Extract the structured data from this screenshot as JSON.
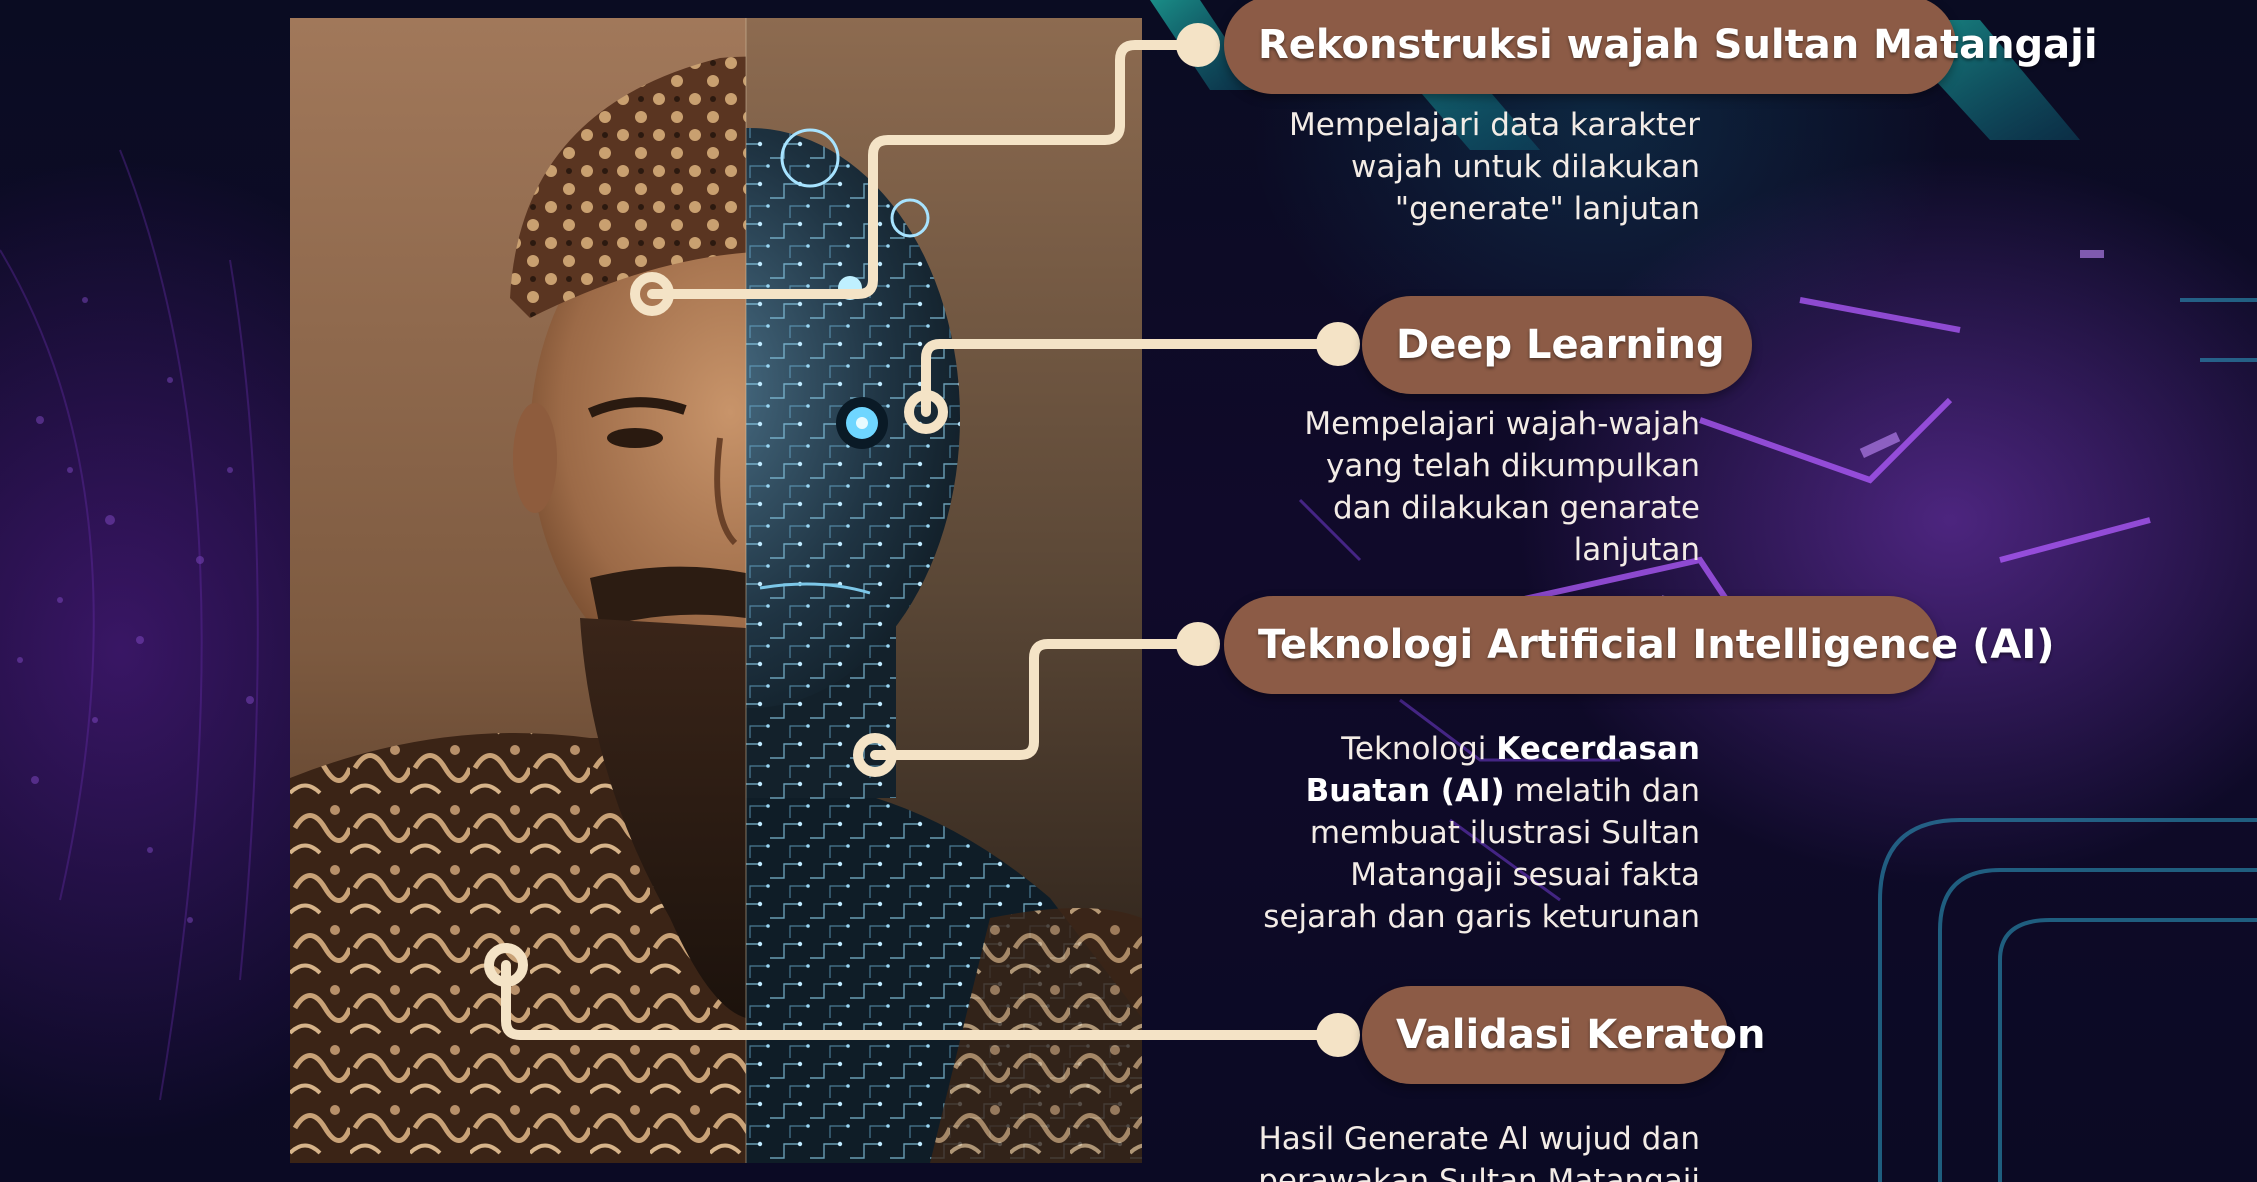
{
  "colors": {
    "pill": "#8c5b46",
    "line": "#f4e3c6",
    "background": "#0b0820",
    "description_text": "#f3ece6"
  },
  "image": {
    "subject": "half human face, half circuit-board AI face"
  },
  "steps": [
    {
      "title": "Rekonstruksi wajah Sultan Matangaji",
      "description": [
        "Mempelajari data karakter",
        "wajah untuk dilakukan",
        "\"generate\" lanjutan"
      ]
    },
    {
      "title": "Deep Learning",
      "description": [
        "Mempelajari  wajah-wajah",
        "yang telah dikumpulkan",
        "dan dilakukan genarate",
        "lanjutan"
      ]
    },
    {
      "title": "Teknologi Artificial Intelligence (AI)",
      "description": {
        "line1_plain": "Teknologi ",
        "line1_bold": "Kecerdasan",
        "line2_bold": "Buatan (AI)",
        "line2_plain": " melatih dan",
        "line3": "membuat ilustrasi Sultan",
        "line4": "Matangaji sesuai fakta",
        "line5": "sejarah dan garis keturunan"
      }
    },
    {
      "title": "Validasi Keraton",
      "description": [
        "Hasil Generate AI wujud dan",
        "perawakan Sultan Matangaji"
      ]
    }
  ]
}
